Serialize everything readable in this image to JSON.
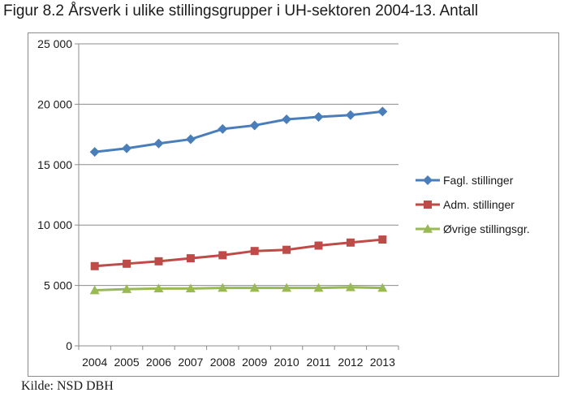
{
  "title": "Figur 8.2 Årsverk i ulike stillingsgrupper i UH-sektoren 2004-13. Antall",
  "source": "Kilde: NSD DBH",
  "chart_data": {
    "type": "line",
    "x": [
      "2004",
      "2005",
      "2006",
      "2007",
      "2008",
      "2009",
      "2010",
      "2011",
      "2012",
      "2013"
    ],
    "ylim": [
      0,
      25000
    ],
    "yticks": [
      0,
      5000,
      10000,
      15000,
      20000,
      25000
    ],
    "ytick_labels": [
      "0",
      "5 000",
      "10 000",
      "15 000",
      "20 000",
      "25 000"
    ],
    "grid": "horizontal",
    "legend_position": "right",
    "series": [
      {
        "name": "Fagl. stillinger",
        "color": "#4a7ebb",
        "marker": "diamond",
        "values": [
          16050,
          16350,
          16750,
          17100,
          17950,
          18250,
          18750,
          18950,
          19100,
          19400
        ]
      },
      {
        "name": "Adm. stillinger",
        "color": "#be4b48",
        "marker": "square",
        "values": [
          6600,
          6800,
          7000,
          7250,
          7500,
          7850,
          7950,
          8300,
          8550,
          8800
        ]
      },
      {
        "name": "Øvrige stillingsgr.",
        "color": "#98b954",
        "marker": "triangle",
        "values": [
          4600,
          4700,
          4750,
          4750,
          4800,
          4800,
          4800,
          4800,
          4850,
          4800
        ]
      }
    ]
  }
}
